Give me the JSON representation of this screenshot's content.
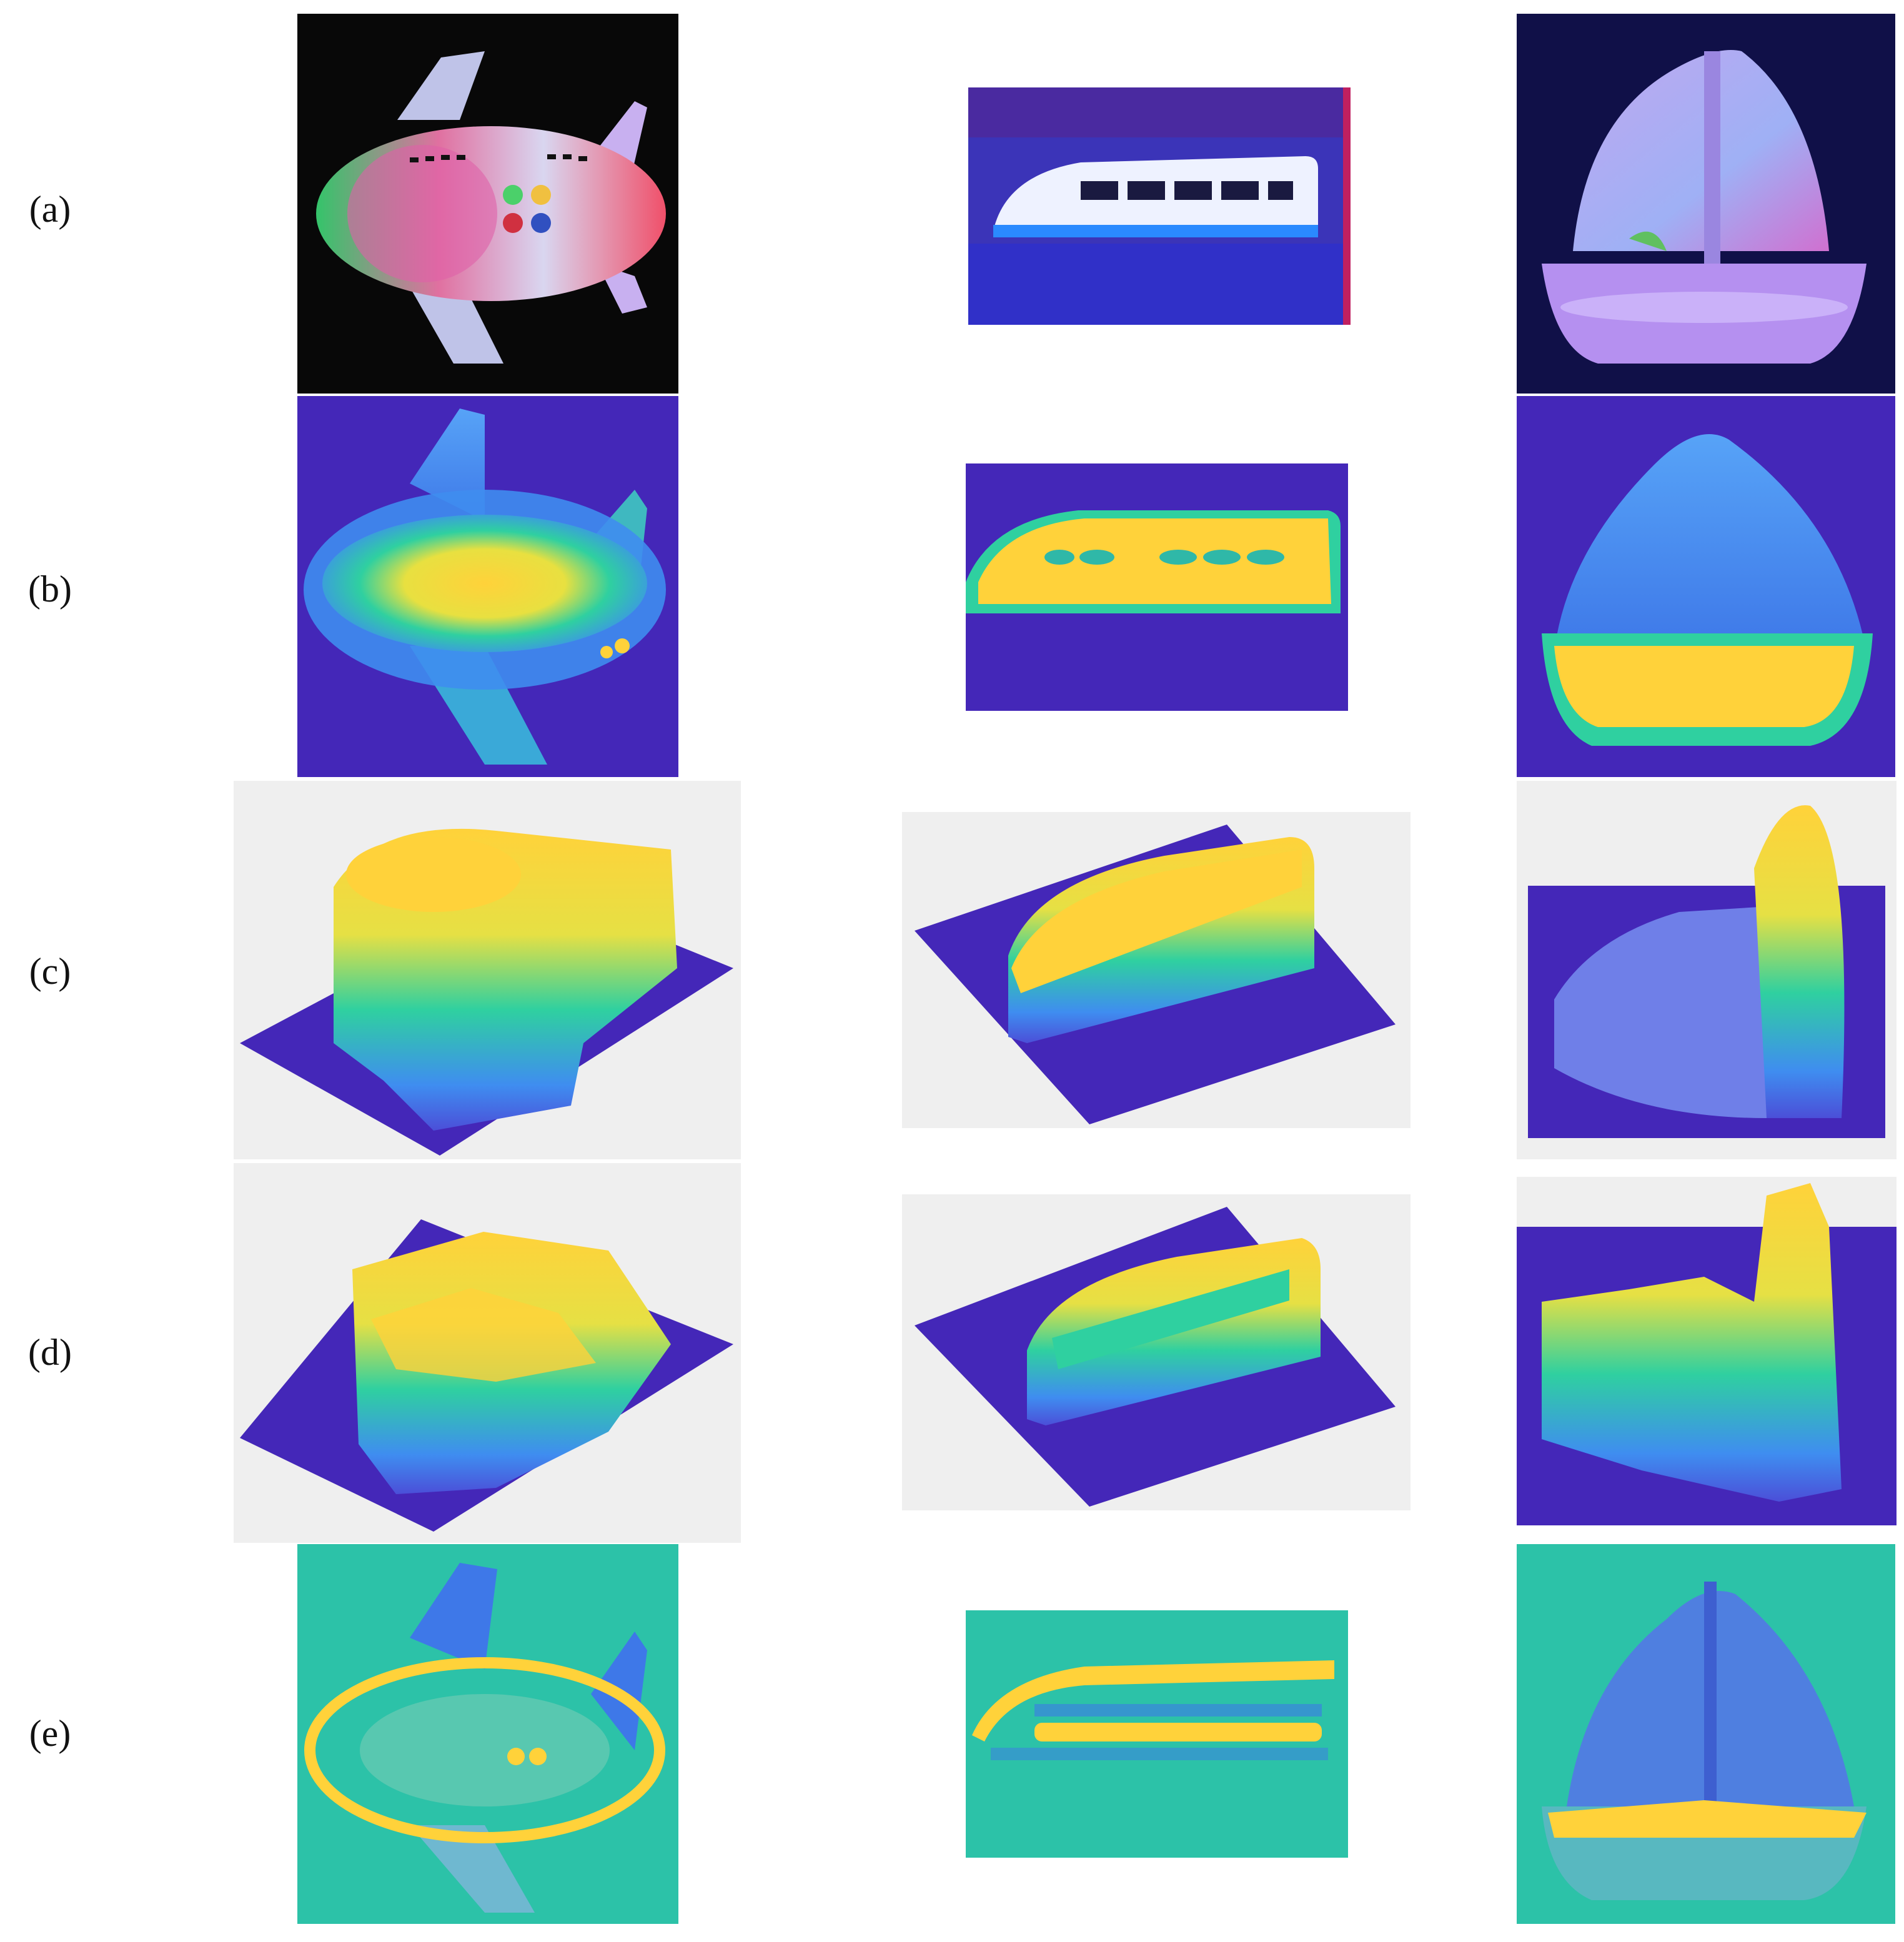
{
  "figure": {
    "row_labels": [
      "(a)",
      "(b)",
      "(c)",
      "(d)",
      "(e)"
    ],
    "columns": [
      "airplane",
      "train",
      "sailboat"
    ],
    "colors": {
      "depth_background": "#4427b8",
      "depth_low": "#3f8df0",
      "depth_mid": "#2fd0a0",
      "depth_high": "#ffd23a",
      "plot_background": "#efefef",
      "residual_background": "#2cc2a8",
      "photo_background": "#080808"
    }
  }
}
